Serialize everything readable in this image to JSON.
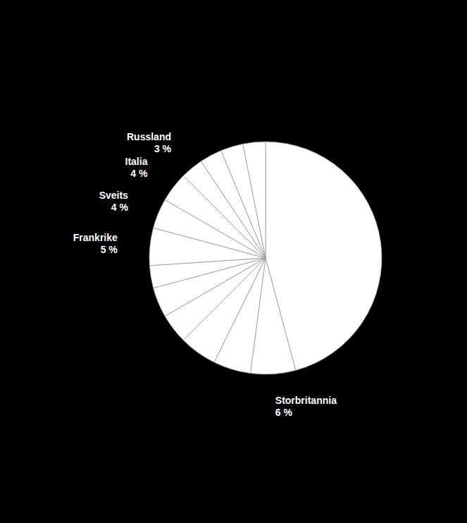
{
  "chart_data": {
    "type": "pie",
    "categories": [
      null,
      "Storbritannia",
      null,
      null,
      null,
      null,
      null,
      "Frankrike",
      "Sveits",
      "Italia",
      "Russland",
      null,
      null,
      null
    ],
    "values": [
      44,
      6,
      5,
      5,
      4,
      4,
      3,
      5,
      4,
      4,
      3,
      3,
      3,
      3
    ],
    "value_labels": [
      null,
      "6 %",
      null,
      null,
      null,
      null,
      null,
      "5 %",
      "4 %",
      "4 %",
      "3 %",
      null,
      null,
      null
    ],
    "color": "#ffffff"
  }
}
